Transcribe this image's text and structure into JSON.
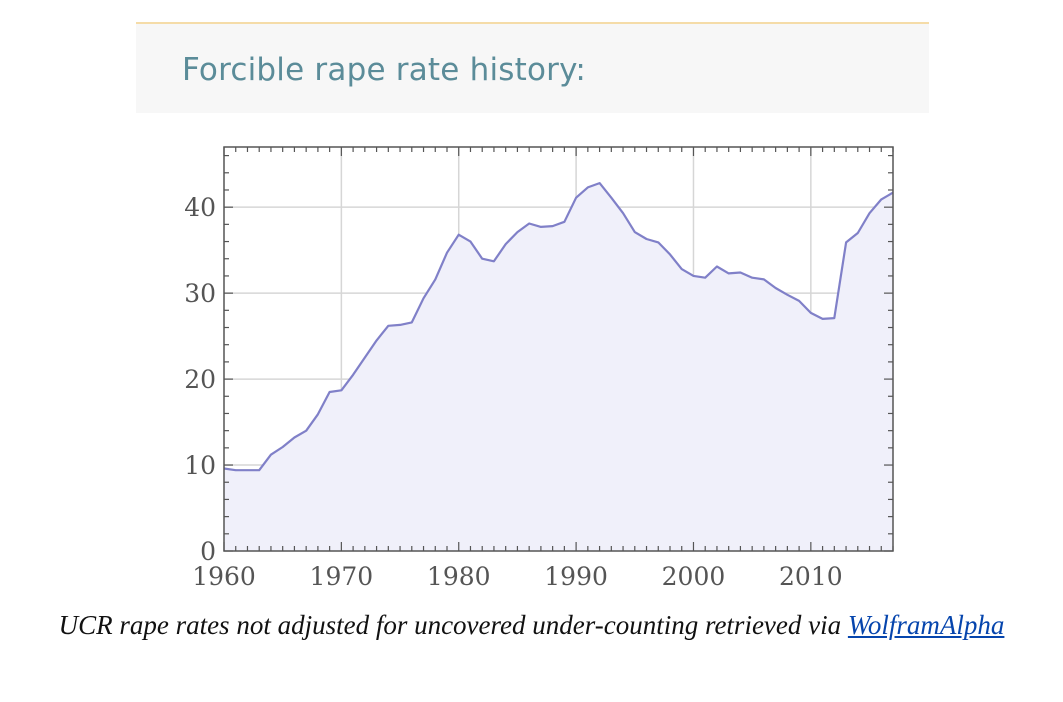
{
  "header": {
    "title": "Forcible rape rate history:"
  },
  "caption": {
    "text": "UCR rape rates not adjusted for uncovered under-counting retrieved via",
    "link_label": "WolframAlpha"
  },
  "colors": {
    "line": "#8080c8",
    "fill": "#f0f0fa",
    "grid": "#d6d6d6",
    "frame": "#555555",
    "header_text": "#5b8c99",
    "link": "#0645ad"
  },
  "chart_data": {
    "type": "area",
    "title": "",
    "xlabel": "",
    "ylabel": "",
    "xlim": [
      1960,
      2017
    ],
    "ylim": [
      0,
      47
    ],
    "grid": true,
    "x_ticks": [
      1960,
      1970,
      1980,
      1990,
      2000,
      2010
    ],
    "y_ticks": [
      0,
      10,
      20,
      30,
      40
    ],
    "x": [
      1960,
      1961,
      1962,
      1963,
      1964,
      1965,
      1966,
      1967,
      1968,
      1969,
      1970,
      1971,
      1972,
      1973,
      1974,
      1975,
      1976,
      1977,
      1978,
      1979,
      1980,
      1981,
      1982,
      1983,
      1984,
      1985,
      1986,
      1987,
      1988,
      1989,
      1990,
      1991,
      1992,
      1993,
      1994,
      1995,
      1996,
      1997,
      1998,
      1999,
      2000,
      2001,
      2002,
      2003,
      2004,
      2005,
      2006,
      2007,
      2008,
      2009,
      2010,
      2011,
      2012,
      2013,
      2014,
      2015,
      2016,
      2017
    ],
    "series": [
      {
        "values": [
          9.6,
          9.4,
          9.4,
          9.4,
          11.2,
          12.1,
          13.2,
          14.0,
          15.9,
          18.5,
          18.7,
          20.5,
          22.5,
          24.5,
          26.2,
          26.3,
          26.6,
          29.4,
          31.6,
          34.7,
          36.8,
          36.0,
          34.0,
          33.7,
          35.7,
          37.1,
          38.1,
          37.7,
          37.8,
          38.3,
          41.1,
          42.3,
          42.8,
          41.1,
          39.3,
          37.1,
          36.3,
          35.9,
          34.5,
          32.8,
          32.0,
          31.8,
          33.1,
          32.3,
          32.4,
          31.8,
          31.6,
          30.6,
          29.8,
          29.1,
          27.7,
          27.0,
          27.1,
          35.9,
          37.0,
          39.3,
          40.9,
          41.7
        ]
      }
    ]
  }
}
